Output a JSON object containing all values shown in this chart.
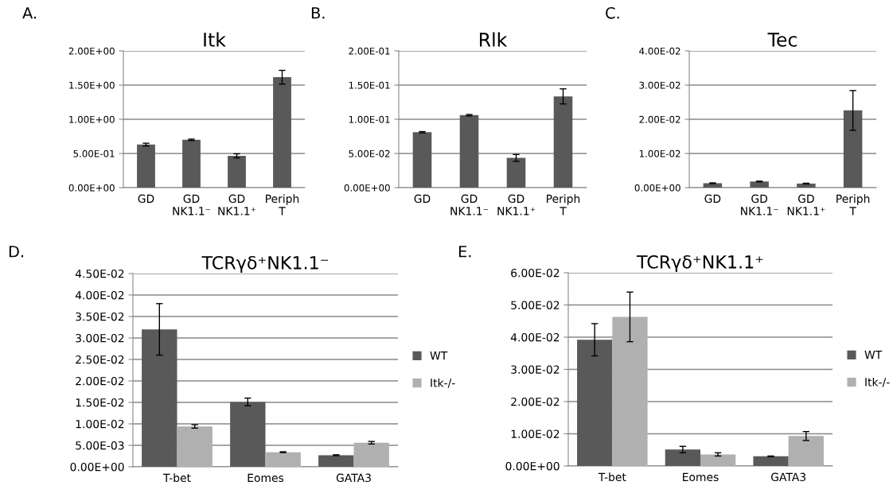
{
  "chart_data": [
    {
      "type": "bar",
      "title": "Itk",
      "annotations": [
        "A."
      ],
      "categories": [
        "GD",
        "GD\nNK1.1⁻",
        "GD\nNK1.1⁺",
        "Periph\nT"
      ],
      "series": [
        {
          "color": "#595959",
          "values": [
            0.63,
            0.7,
            0.465,
            1.615
          ],
          "errors": [
            0.02,
            0.01,
            0.03,
            0.1
          ]
        }
      ],
      "ylim": [
        0,
        2
      ],
      "yticks": [
        {
          "value": 0,
          "label": "0.00E+00"
        },
        {
          "value": 0.5,
          "label": "5.00E-01"
        },
        {
          "value": 1.0,
          "label": "1.00E+00"
        },
        {
          "value": 1.5,
          "label": "1.50E+00"
        },
        {
          "value": 2.0,
          "label": "2.00E+00"
        }
      ],
      "grid": "y",
      "legend": false
    },
    {
      "type": "bar",
      "title": "Rlk",
      "annotations": [
        "B."
      ],
      "categories": [
        "GD",
        "GD\nNK1.1⁻",
        "GD\nNK1.1⁺",
        "Periph\nT"
      ],
      "series": [
        {
          "color": "#595959",
          "values": [
            0.081,
            0.106,
            0.0435,
            0.1335
          ],
          "errors": [
            0.001,
            0.001,
            0.005,
            0.011
          ]
        }
      ],
      "ylim": [
        0,
        0.2
      ],
      "yticks": [
        {
          "value": 0,
          "label": "0.00E+00"
        },
        {
          "value": 0.05,
          "label": "5.00E-02"
        },
        {
          "value": 0.1,
          "label": "1.00E-01"
        },
        {
          "value": 0.15,
          "label": "1.50E-01"
        },
        {
          "value": 0.2,
          "label": "2.00E-01"
        }
      ],
      "grid": "y",
      "legend": false
    },
    {
      "type": "bar",
      "title": "Tec",
      "annotations": [
        "C."
      ],
      "categories": [
        "GD",
        "GD\nNK1.1⁻",
        "GD\nNK1.1⁺",
        "Periph\nT"
      ],
      "series": [
        {
          "color": "#595959",
          "values": [
            0.0013,
            0.0018,
            0.0012,
            0.0226
          ],
          "errors": [
            0.0001,
            0.0001,
            0.0001,
            0.0058
          ]
        }
      ],
      "ylim": [
        0,
        0.04
      ],
      "yticks": [
        {
          "value": 0,
          "label": "0.00E+00"
        },
        {
          "value": 0.01,
          "label": "1.00E-02"
        },
        {
          "value": 0.02,
          "label": "2.00E-02"
        },
        {
          "value": 0.03,
          "label": "3.00E-02"
        },
        {
          "value": 0.04,
          "label": "4.00E-02"
        }
      ],
      "grid": "y",
      "legend": false
    },
    {
      "type": "bar",
      "title": "TCRγδ⁺NK1.1⁻",
      "annotations": [
        "D."
      ],
      "categories": [
        "T-bet",
        "Eomes",
        "GATA3"
      ],
      "series": [
        {
          "name": "WT",
          "color": "#595959",
          "values": [
            0.032,
            0.0151,
            0.0027
          ],
          "errors": [
            0.006,
            0.0009,
            0.0001
          ]
        },
        {
          "name": "Itk-/-",
          "color": "#b0b0b0",
          "values": [
            0.0094,
            0.0034,
            0.0056
          ],
          "errors": [
            0.0004,
            0.0001,
            0.0003
          ]
        }
      ],
      "ylim": [
        0,
        0.045
      ],
      "yticks": [
        {
          "value": 0,
          "label": "0.00E+00"
        },
        {
          "value": 0.005,
          "label": "5.00E-03"
        },
        {
          "value": 0.01,
          "label": "1.00E-02"
        },
        {
          "value": 0.015,
          "label": "1.50E-02"
        },
        {
          "value": 0.02,
          "label": "2.00E-02"
        },
        {
          "value": 0.025,
          "label": "2.50E-02"
        },
        {
          "value": 0.03,
          "label": "3.00E-02"
        },
        {
          "value": 0.035,
          "label": "3.50E-02"
        },
        {
          "value": 0.04,
          "label": "4.00E-02"
        },
        {
          "value": 0.045,
          "label": "4.50E-02"
        }
      ],
      "grid": "y",
      "legend": "right"
    },
    {
      "type": "bar",
      "title": "TCRγδ⁺NK1.1⁺",
      "annotations": [
        "E."
      ],
      "categories": [
        "T-bet",
        "Eomes",
        "GATA3"
      ],
      "series": [
        {
          "name": "WT",
          "color": "#595959",
          "values": [
            0.0392,
            0.0051,
            0.003
          ],
          "errors": [
            0.005,
            0.001,
            0.0001
          ]
        },
        {
          "name": "Itk-/-",
          "color": "#b0b0b0",
          "values": [
            0.0463,
            0.0036,
            0.0093
          ],
          "errors": [
            0.0077,
            0.0005,
            0.0014
          ]
        }
      ],
      "ylim": [
        0,
        0.06
      ],
      "yticks": [
        {
          "value": 0,
          "label": "0.00E+00"
        },
        {
          "value": 0.01,
          "label": "1.00E-02"
        },
        {
          "value": 0.02,
          "label": "2.00E-02"
        },
        {
          "value": 0.03,
          "label": "3.00E-02"
        },
        {
          "value": 0.04,
          "label": "4.00E-02"
        },
        {
          "value": 0.05,
          "label": "5.00E-02"
        },
        {
          "value": 0.06,
          "label": "6.00E-02"
        }
      ],
      "grid": "y",
      "legend": "right"
    }
  ]
}
